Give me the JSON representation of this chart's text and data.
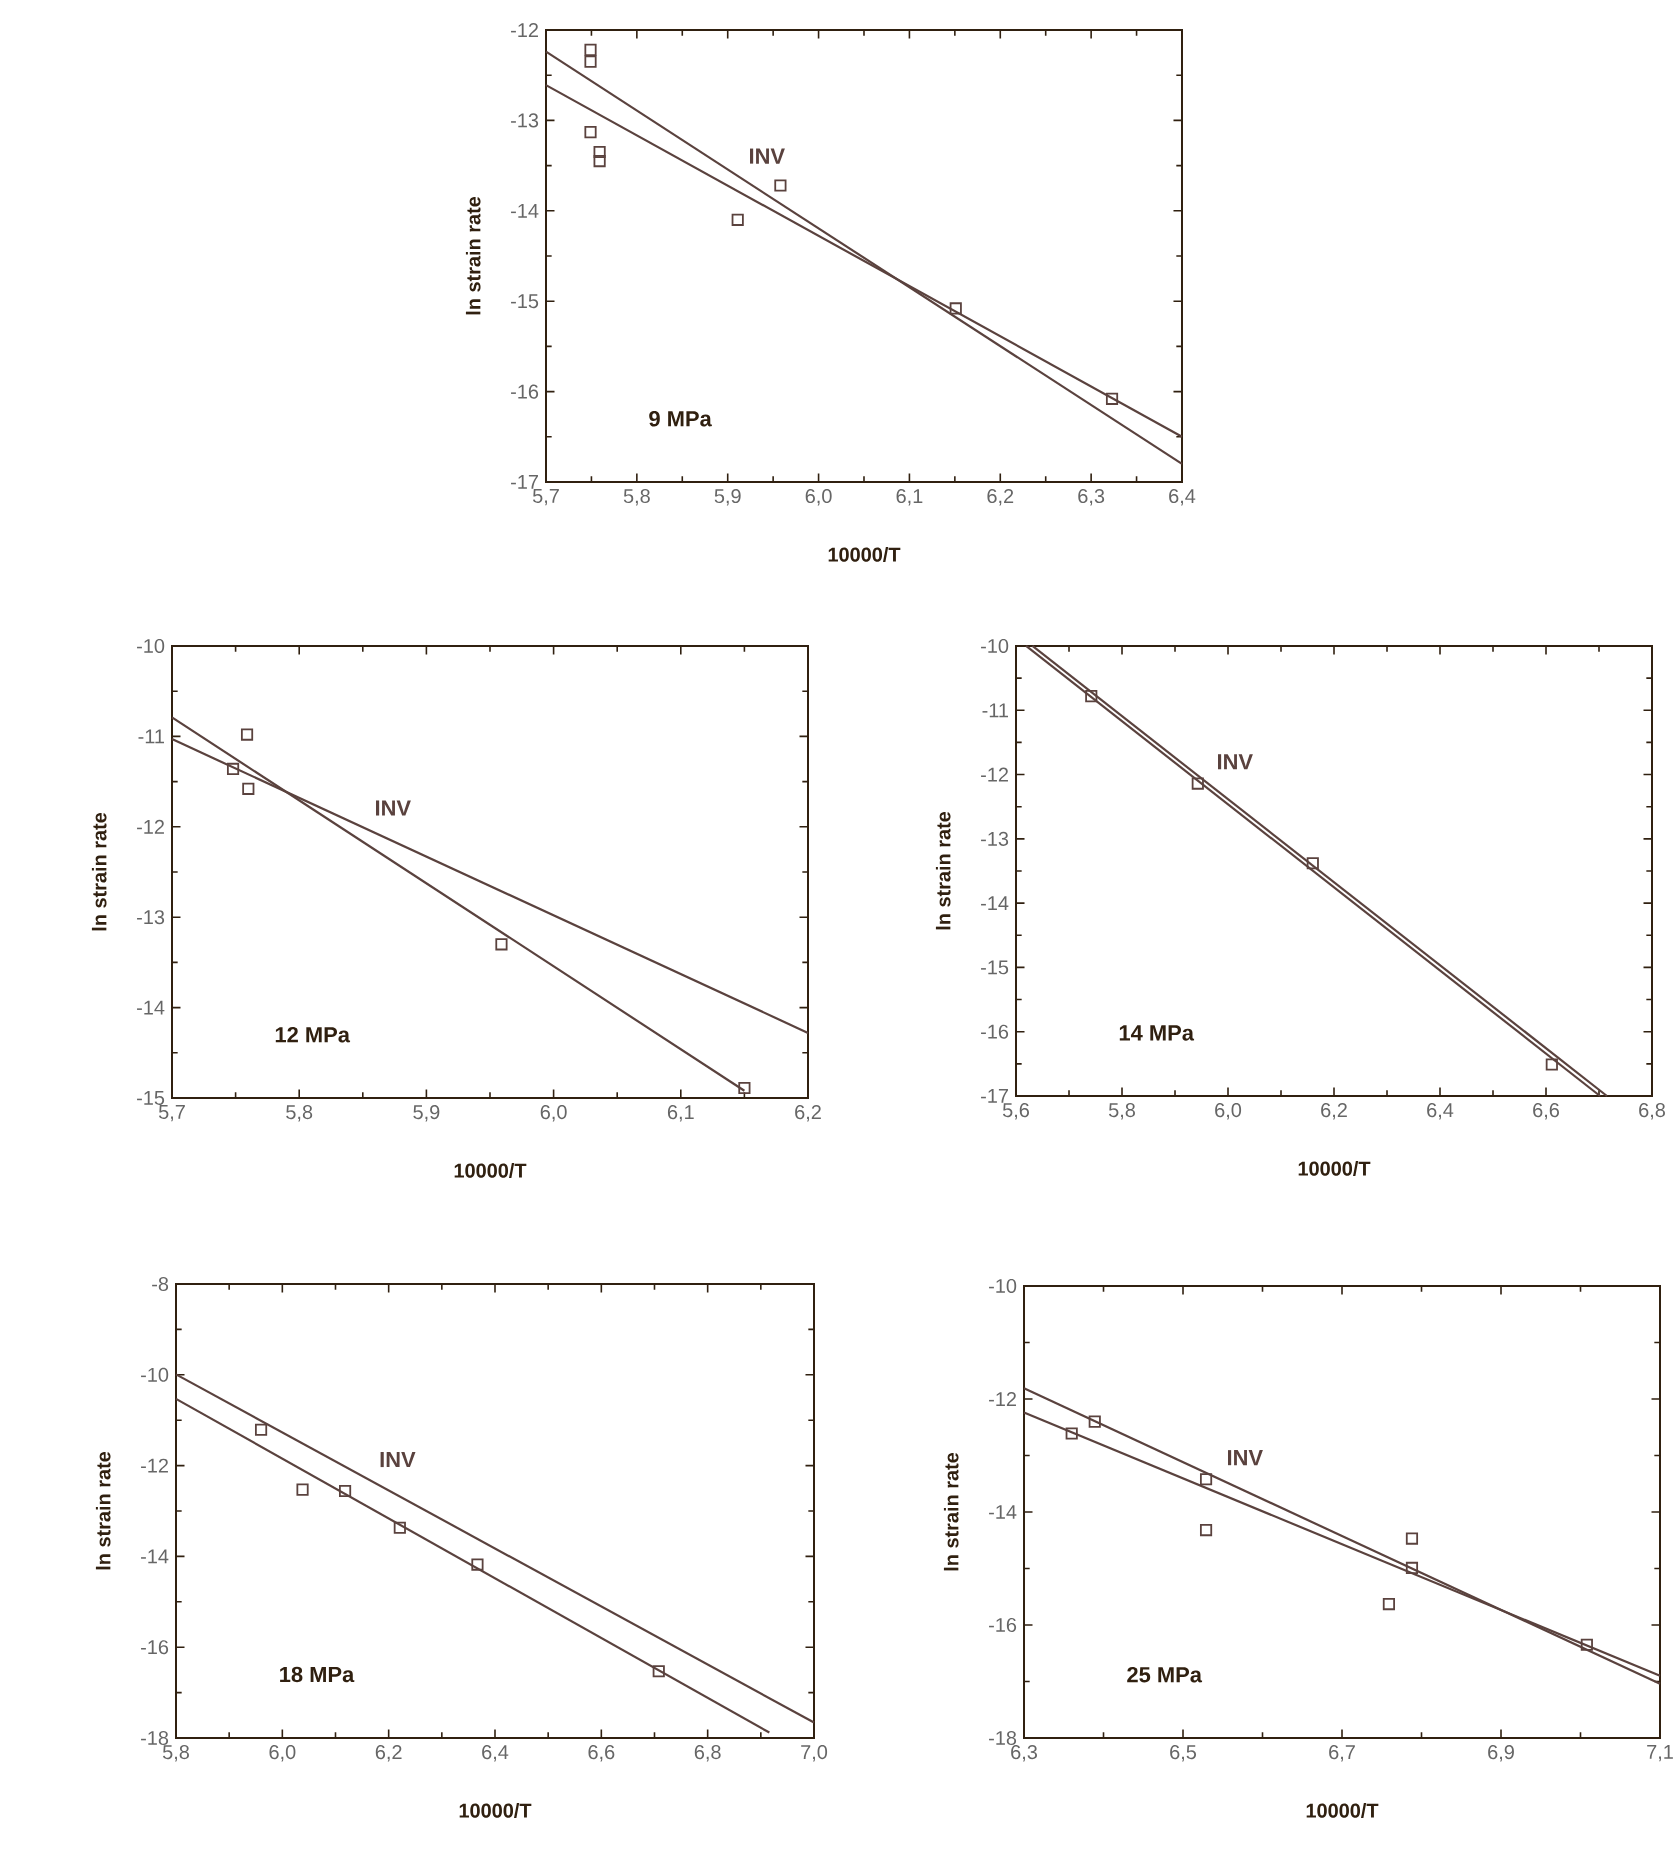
{
  "chart_data": [
    {
      "type": "scatter",
      "xlabel": "10000/T",
      "ylabel": "ln strain rate",
      "annotations": [
        "9 MPa"
      ],
      "xlim": [
        5.7,
        6.4
      ],
      "ylim": [
        -17,
        -12
      ],
      "xticks": [
        {
          "value": 5.7,
          "label": "5,7"
        },
        {
          "value": 5.8,
          "label": "5,8"
        },
        {
          "value": 5.9,
          "label": "5,9"
        },
        {
          "value": 6.0,
          "label": "6,0"
        },
        {
          "value": 6.1,
          "label": "6,1"
        },
        {
          "value": 6.2,
          "label": "6,2"
        },
        {
          "value": 6.3,
          "label": "6,3"
        },
        {
          "value": 6.4,
          "label": "6,4"
        }
      ],
      "yticks": [
        -17,
        -16,
        -15,
        -14,
        -13,
        -12
      ],
      "series": [
        {
          "type": "scatter",
          "marker": "square",
          "color": "#5a423e",
          "x": [
            5.749,
            5.749,
            5.749,
            5.759,
            5.759,
            5.911,
            5.958,
            6.151,
            6.323
          ],
          "values": [
            -12.22,
            -12.35,
            -13.13,
            -13.35,
            -13.45,
            -14.1,
            -13.72,
            -15.08,
            -16.08
          ]
        },
        {
          "type": "line",
          "name": "INV",
          "color": "#5a423e",
          "x": [
            5.7,
            6.4
          ],
          "values": [
            -12.24,
            -16.8
          ]
        },
        {
          "type": "line",
          "color": "#5a423e",
          "x": [
            5.7,
            6.4
          ],
          "values": [
            -12.61,
            -16.5
          ]
        }
      ]
    },
    {
      "type": "scatter",
      "xlabel": "10000/T",
      "ylabel": "ln strain rate",
      "annotations": [
        "12 MPa"
      ],
      "xlim": [
        5.7,
        6.2
      ],
      "ylim": [
        -15,
        -10
      ],
      "xticks": [
        {
          "value": 5.7,
          "label": "5,7"
        },
        {
          "value": 5.8,
          "label": "5,8"
        },
        {
          "value": 5.9,
          "label": "5,9"
        },
        {
          "value": 6.0,
          "label": "6,0"
        },
        {
          "value": 6.1,
          "label": "6,1"
        },
        {
          "value": 6.2,
          "label": "6,2"
        }
      ],
      "yticks": [
        -15,
        -14,
        -13,
        -12,
        -11,
        -10
      ],
      "series": [
        {
          "type": "scatter",
          "marker": "square",
          "color": "#5a423e",
          "x": [
            5.759,
            5.748,
            5.76,
            5.959,
            6.15
          ],
          "values": [
            -10.98,
            -11.36,
            -11.58,
            -13.3,
            -14.89
          ]
        },
        {
          "type": "line",
          "name": "INV",
          "color": "#5a423e",
          "x": [
            5.7,
            6.2
          ],
          "values": [
            -11.03,
            -14.28
          ]
        },
        {
          "type": "line",
          "color": "#5a423e",
          "x": [
            5.7,
            6.15
          ],
          "values": [
            -10.79,
            -14.92
          ]
        }
      ]
    },
    {
      "type": "scatter",
      "xlabel": "10000/T",
      "ylabel": "ln strain rate",
      "annotations": [
        "14 MPa"
      ],
      "xlim": [
        5.6,
        6.8
      ],
      "ylim": [
        -17,
        -10
      ],
      "xticks": [
        {
          "value": 5.6,
          "label": "5,6"
        },
        {
          "value": 5.8,
          "label": "5,8"
        },
        {
          "value": 6.0,
          "label": "6,0"
        },
        {
          "value": 6.2,
          "label": "6,2"
        },
        {
          "value": 6.4,
          "label": "6,4"
        },
        {
          "value": 6.6,
          "label": "6,6"
        },
        {
          "value": 6.8,
          "label": "6,8"
        }
      ],
      "yticks": [
        -17,
        -16,
        -15,
        -14,
        -13,
        -12,
        -11,
        -10
      ],
      "series": [
        {
          "type": "scatter",
          "marker": "square",
          "color": "#5a423e",
          "x": [
            5.742,
            5.943,
            6.16,
            6.611
          ],
          "values": [
            -10.78,
            -12.14,
            -13.38,
            -16.51
          ]
        },
        {
          "type": "line",
          "name": "INV",
          "color": "#5a423e",
          "x": [
            5.631,
            6.715
          ],
          "values": [
            -10,
            -17
          ]
        },
        {
          "type": "line",
          "color": "#5a423e",
          "x": [
            5.619,
            6.702
          ],
          "values": [
            -10,
            -17
          ]
        }
      ]
    },
    {
      "type": "scatter",
      "xlabel": "10000/T",
      "ylabel": "ln strain rate",
      "annotations": [
        "18 MPa"
      ],
      "xlim": [
        5.8,
        7.0
      ],
      "ylim": [
        -18,
        -8
      ],
      "xticks": [
        {
          "value": 5.8,
          "label": "5,8"
        },
        {
          "value": 6.0,
          "label": "6,0"
        },
        {
          "value": 6.2,
          "label": "6,2"
        },
        {
          "value": 6.4,
          "label": "6,4"
        },
        {
          "value": 6.6,
          "label": "6,6"
        },
        {
          "value": 6.8,
          "label": "6,8"
        },
        {
          "value": 7.0,
          "label": "7,0"
        }
      ],
      "yticks": [
        -18,
        -16,
        -14,
        -12,
        -10,
        -8
      ],
      "series": [
        {
          "type": "scatter",
          "marker": "square",
          "color": "#5a423e",
          "x": [
            5.96,
            6.038,
            6.118,
            6.221,
            6.367,
            6.708
          ],
          "values": [
            -11.21,
            -12.53,
            -12.56,
            -13.37,
            -14.18,
            -16.53
          ]
        },
        {
          "type": "line",
          "name": "INV",
          "color": "#5a423e",
          "x": [
            5.8,
            7.0
          ],
          "values": [
            -9.99,
            -17.66
          ]
        },
        {
          "type": "line",
          "color": "#5a423e",
          "x": [
            5.8,
            6.916
          ],
          "values": [
            -10.53,
            -17.88
          ]
        }
      ]
    },
    {
      "type": "scatter",
      "xlabel": "10000/T",
      "ylabel": "ln strain rate",
      "annotations": [
        "25 MPa"
      ],
      "xlim": [
        6.3,
        7.1
      ],
      "ylim": [
        -18,
        -10
      ],
      "xticks": [
        {
          "value": 6.3,
          "label": "6,3"
        },
        {
          "value": 6.5,
          "label": "6,5"
        },
        {
          "value": 6.7,
          "label": "6,7"
        },
        {
          "value": 6.9,
          "label": "6,9"
        },
        {
          "value": 7.1,
          "label": "7,1"
        }
      ],
      "yticks": [
        -18,
        -16,
        -14,
        -12,
        -10
      ],
      "series": [
        {
          "type": "scatter",
          "marker": "square",
          "color": "#5a423e",
          "x": [
            6.36,
            6.389,
            6.529,
            6.529,
            6.759,
            6.788,
            6.788,
            7.008
          ],
          "values": [
            -12.61,
            -12.4,
            -13.42,
            -14.32,
            -15.63,
            -14.47,
            -14.99,
            -16.35
          ]
        },
        {
          "type": "line",
          "name": "INV",
          "color": "#5a423e",
          "x": [
            6.3,
            7.1
          ],
          "values": [
            -11.81,
            -17.04
          ]
        },
        {
          "type": "line",
          "color": "#5a423e",
          "x": [
            6.3,
            7.1
          ],
          "values": [
            -12.24,
            -16.9
          ]
        }
      ]
    }
  ]
}
